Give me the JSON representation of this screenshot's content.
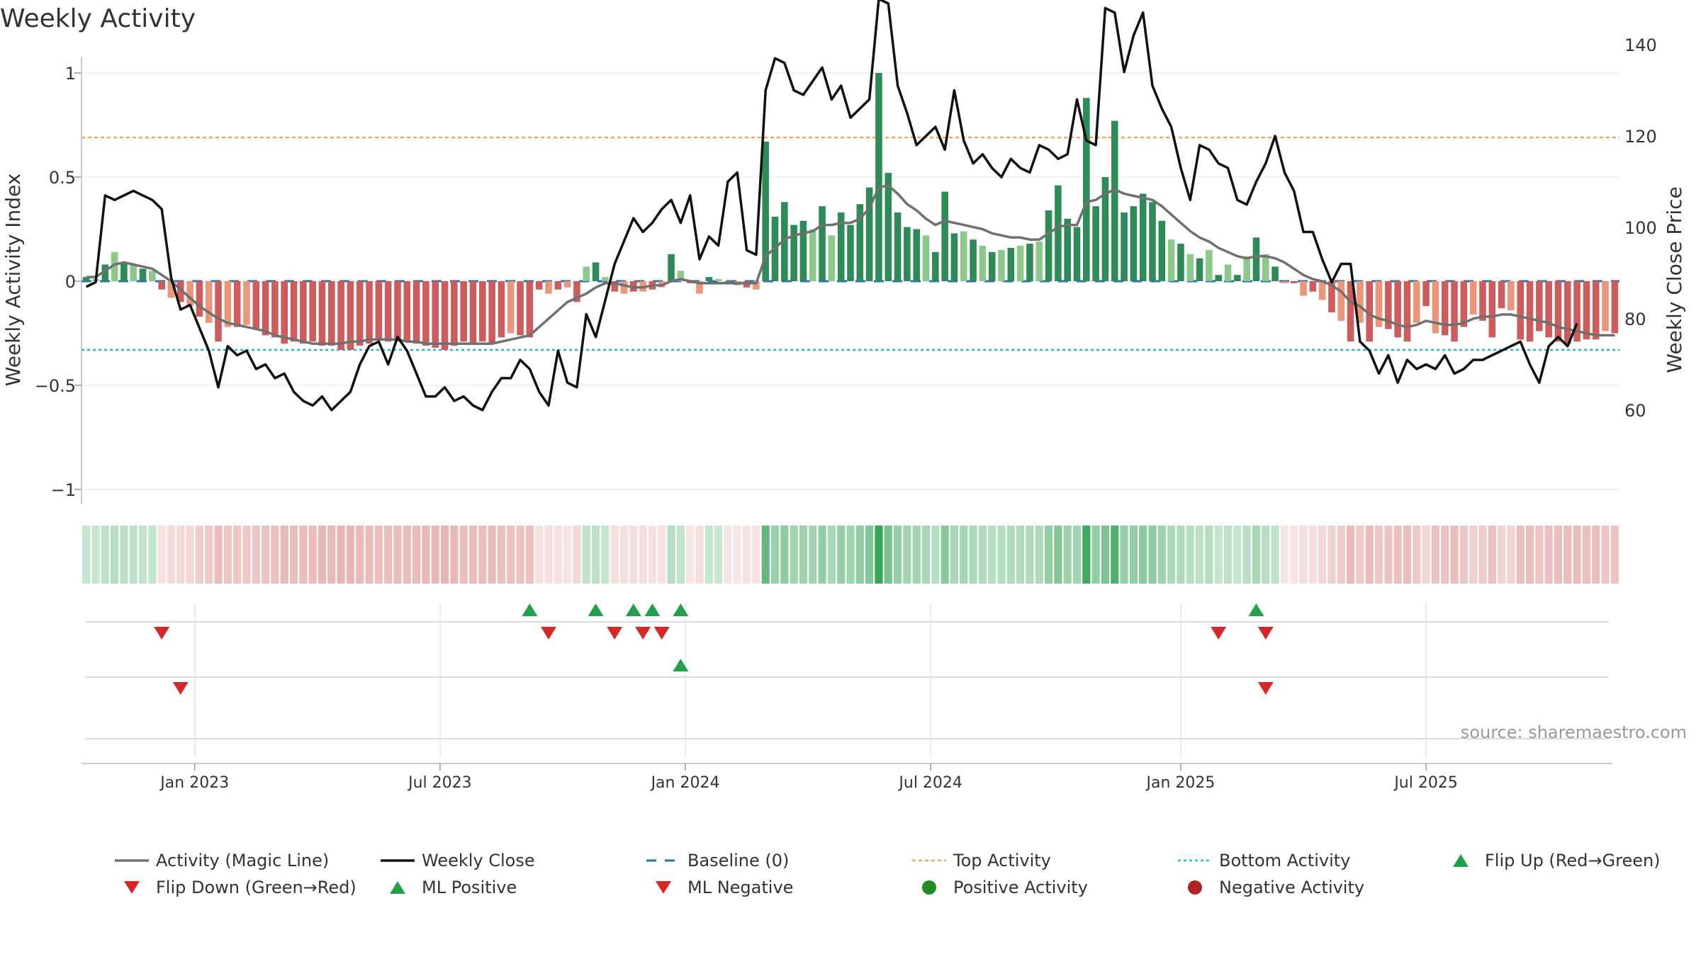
{
  "chart_data": {
    "type": "bar",
    "title": "Weekly Activity",
    "source": "source: sharemaestro.com",
    "ylabel_left": "Weekly Activity Index",
    "ylabel_right": "Weekly Close Price",
    "ylim_left": [
      -1.1,
      1.05
    ],
    "ylim_right": [
      58,
      158
    ],
    "yticks_left": [
      {
        "v": 1,
        "label": "1"
      },
      {
        "v": 0.5,
        "label": "0.5"
      },
      {
        "v": 0,
        "label": "0"
      },
      {
        "v": -0.5,
        "label": "−0.5"
      },
      {
        "v": -1,
        "label": "−1"
      }
    ],
    "yticks_right": [
      {
        "v": 140,
        "label": "140"
      },
      {
        "v": 120,
        "label": "120"
      },
      {
        "v": 100,
        "label": "100"
      },
      {
        "v": 80,
        "label": "80"
      },
      {
        "v": 60,
        "label": "60"
      }
    ],
    "xticks": [
      {
        "week": 11.5,
        "label": "Jan 2023"
      },
      {
        "week": 37.5,
        "label": "Jul 2023"
      },
      {
        "week": 63.5,
        "label": "Jan 2024"
      },
      {
        "week": 89.5,
        "label": "Jul 2024"
      },
      {
        "week": 116,
        "label": "Jan 2025"
      },
      {
        "week": 142,
        "label": "Jul 2025"
      }
    ],
    "top_activity": 0.69,
    "bottom_activity": -0.33,
    "colors": {
      "strong_pos": "#2e8b57",
      "weak_pos": "#8cc98a",
      "strong_neg": "#cd5c5c",
      "weak_neg": "#e9967a",
      "close": "#111111",
      "magic": "#707070",
      "baseline": "#1f77b4",
      "top": "#f4a460",
      "bottom": "#17becf",
      "flip_up": "#22a04b",
      "flip_down": "#d62728",
      "pos_dot": "#228b22",
      "neg_dot": "#b22222"
    },
    "series": [
      {
        "name": "Activity",
        "values": [
          0.02,
          0.01,
          0.08,
          0.14,
          0.09,
          0.08,
          0.06,
          0.05,
          -0.04,
          -0.08,
          -0.1,
          -0.12,
          -0.17,
          -0.2,
          -0.29,
          -0.22,
          -0.22,
          -0.21,
          -0.23,
          -0.26,
          -0.27,
          -0.3,
          -0.29,
          -0.3,
          -0.29,
          -0.31,
          -0.31,
          -0.33,
          -0.33,
          -0.31,
          -0.3,
          -0.28,
          -0.29,
          -0.29,
          -0.29,
          -0.3,
          -0.31,
          -0.32,
          -0.33,
          -0.31,
          -0.29,
          -0.3,
          -0.29,
          -0.3,
          -0.27,
          -0.25,
          -0.26,
          -0.27,
          -0.04,
          -0.06,
          -0.04,
          -0.03,
          -0.1,
          0.07,
          0.09,
          0.02,
          -0.05,
          -0.06,
          -0.05,
          -0.05,
          -0.04,
          -0.03,
          0.13,
          0.05,
          -0.01,
          -0.06,
          0.02,
          0.01,
          -0.01,
          -0.02,
          -0.03,
          -0.04,
          0.67,
          0.31,
          0.38,
          0.27,
          0.29,
          0.25,
          0.36,
          0.22,
          0.33,
          0.27,
          0.37,
          0.45,
          1.0,
          0.52,
          0.33,
          0.26,
          0.25,
          0.22,
          0.14,
          0.43,
          0.23,
          0.24,
          0.2,
          0.17,
          0.14,
          0.15,
          0.16,
          0.17,
          0.18,
          0.19,
          0.34,
          0.46,
          0.3,
          0.26,
          0.88,
          0.36,
          0.5,
          0.77,
          0.33,
          0.36,
          0.42,
          0.38,
          0.29,
          0.2,
          0.18,
          0.13,
          0.11,
          0.15,
          0.03,
          0.08,
          0.03,
          0.12,
          0.21,
          0.13,
          0.07,
          -0.01,
          -0.01,
          -0.07,
          -0.05,
          -0.09,
          -0.15,
          -0.19,
          -0.29,
          -0.2,
          -0.29,
          -0.22,
          -0.23,
          -0.27,
          -0.29,
          -0.2,
          -0.12,
          -0.25,
          -0.26,
          -0.29,
          -0.22,
          -0.16,
          -0.19,
          -0.27,
          -0.13,
          -0.14,
          -0.28,
          -0.29,
          -0.24,
          -0.27,
          -0.29,
          -0.3,
          -0.29,
          -0.28,
          -0.28,
          -0.24,
          -0.25
        ]
      },
      {
        "name": "Weekly Close",
        "values": [
          87,
          88,
          107,
          106,
          107,
          108,
          107,
          106,
          104,
          89,
          82,
          83,
          78,
          73,
          65,
          74,
          72,
          73,
          69,
          70,
          67,
          68,
          64,
          62,
          61,
          63,
          60,
          62,
          64,
          70,
          74,
          75,
          70,
          76,
          73,
          68,
          63,
          63,
          65,
          62,
          63,
          61,
          60,
          64,
          67,
          67,
          71,
          69,
          64,
          61,
          73,
          66,
          65,
          81,
          76,
          84,
          92,
          97,
          102,
          99,
          101,
          104,
          106,
          101,
          107,
          93,
          98,
          96,
          110,
          112,
          95,
          94,
          130,
          137,
          136,
          130,
          129,
          132,
          135,
          128,
          131,
          124,
          126,
          128,
          150,
          149,
          131,
          125,
          118,
          120,
          122,
          117,
          130,
          119,
          114,
          116,
          113,
          111,
          115,
          113,
          112,
          118,
          117,
          115,
          116,
          128,
          119,
          118,
          148,
          147,
          134,
          142,
          147,
          131,
          126,
          122,
          113,
          106,
          118,
          117,
          114,
          113,
          106,
          105,
          110,
          114,
          120,
          112,
          108,
          99,
          99,
          93,
          88,
          92,
          92,
          75,
          73,
          68,
          72,
          66,
          71,
          69,
          70,
          69,
          72,
          68,
          69,
          71,
          71,
          72,
          73,
          74,
          75,
          70,
          66,
          74,
          76,
          74,
          79
        ]
      },
      {
        "name": "Activity (Magic Line)",
        "values": [
          0.02,
          0.02,
          0.05,
          0.08,
          0.09,
          0.08,
          0.07,
          0.06,
          0.03,
          0.0,
          -0.04,
          -0.08,
          -0.12,
          -0.15,
          -0.18,
          -0.2,
          -0.21,
          -0.22,
          -0.23,
          -0.24,
          -0.26,
          -0.27,
          -0.28,
          -0.29,
          -0.3,
          -0.3,
          -0.3,
          -0.3,
          -0.29,
          -0.29,
          -0.28,
          -0.28,
          -0.28,
          -0.28,
          -0.29,
          -0.29,
          -0.3,
          -0.3,
          -0.3,
          -0.3,
          -0.3,
          -0.3,
          -0.3,
          -0.3,
          -0.29,
          -0.28,
          -0.27,
          -0.26,
          -0.22,
          -0.18,
          -0.14,
          -0.1,
          -0.08,
          -0.06,
          -0.03,
          -0.01,
          -0.01,
          -0.02,
          -0.03,
          -0.03,
          -0.02,
          -0.02,
          0.0,
          0.01,
          0.0,
          -0.01,
          -0.01,
          -0.01,
          -0.01,
          -0.01,
          -0.01,
          -0.01,
          0.12,
          0.16,
          0.2,
          0.22,
          0.23,
          0.24,
          0.27,
          0.27,
          0.28,
          0.28,
          0.3,
          0.35,
          0.45,
          0.46,
          0.42,
          0.37,
          0.34,
          0.3,
          0.27,
          0.29,
          0.28,
          0.27,
          0.26,
          0.25,
          0.23,
          0.22,
          0.21,
          0.21,
          0.2,
          0.2,
          0.23,
          0.26,
          0.27,
          0.27,
          0.38,
          0.39,
          0.42,
          0.44,
          0.42,
          0.41,
          0.4,
          0.39,
          0.36,
          0.32,
          0.28,
          0.24,
          0.21,
          0.19,
          0.16,
          0.14,
          0.12,
          0.11,
          0.12,
          0.12,
          0.11,
          0.09,
          0.06,
          0.03,
          0.01,
          0.0,
          -0.02,
          -0.05,
          -0.1,
          -0.12,
          -0.16,
          -0.18,
          -0.19,
          -0.21,
          -0.22,
          -0.21,
          -0.19,
          -0.2,
          -0.21,
          -0.21,
          -0.2,
          -0.18,
          -0.17,
          -0.17,
          -0.16,
          -0.16,
          -0.17,
          -0.18,
          -0.19,
          -0.2,
          -0.22,
          -0.23,
          -0.24,
          -0.25,
          -0.26,
          -0.26,
          -0.26
        ]
      }
    ],
    "marker_rows": {
      "flip_up": [
        47,
        54,
        58,
        60,
        63,
        124
      ],
      "flip_down": [
        8,
        49,
        56,
        59,
        61,
        120,
        125
      ],
      "ml_positive": [
        63
      ],
      "ml_negative": [
        10,
        125
      ]
    },
    "legend": [
      {
        "key": "magic",
        "label": "Activity (Magic Line)"
      },
      {
        "key": "close",
        "label": "Weekly Close"
      },
      {
        "key": "baseline",
        "label": "Baseline (0)"
      },
      {
        "key": "top",
        "label": "Top Activity"
      },
      {
        "key": "bottom",
        "label": "Bottom Activity"
      },
      {
        "key": "flip_up",
        "label": "Flip Up (Red→Green)"
      },
      {
        "key": "flip_down",
        "label": "Flip Down (Green→Red)"
      },
      {
        "key": "ml_pos",
        "label": "ML Positive"
      },
      {
        "key": "ml_neg",
        "label": "ML Negative"
      },
      {
        "key": "pos_dot",
        "label": "Positive Activity"
      },
      {
        "key": "neg_dot",
        "label": "Negative Activity"
      }
    ]
  }
}
